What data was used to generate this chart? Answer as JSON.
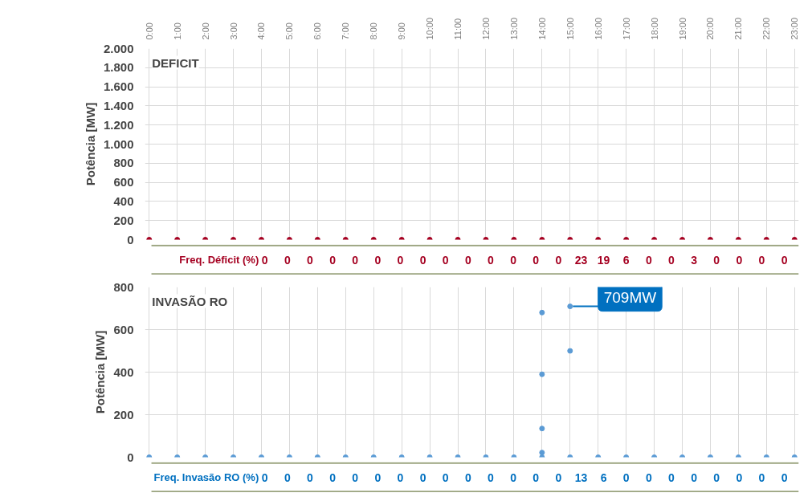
{
  "chart_data": [
    {
      "type": "scatter",
      "title": "DEFICIT",
      "ylabel": "Potência [MW]",
      "categories": [
        "0:00",
        "1:00",
        "2:00",
        "3:00",
        "4:00",
        "5:00",
        "6:00",
        "7:00",
        "8:00",
        "9:00",
        "10:00",
        "11:00",
        "12:00",
        "13:00",
        "14:00",
        "15:00",
        "16:00",
        "17:00",
        "18:00",
        "19:00",
        "20:00",
        "21:00",
        "22:00",
        "23:00"
      ],
      "series": [
        {
          "color": "#a50021",
          "values": [
            0,
            0,
            0,
            0,
            0,
            0,
            0,
            0,
            0,
            0,
            0,
            0,
            0,
            0,
            0,
            0,
            0,
            0,
            0,
            0,
            0,
            0,
            0,
            0
          ]
        }
      ],
      "ylim": [
        0,
        2000
      ],
      "yticks": [
        0,
        200,
        400,
        {
          "value": 600,
          "label": "600"
        },
        800,
        {
          "value": 1000,
          "label": "1.000"
        },
        {
          "value": 1200,
          "label": "1.200"
        },
        {
          "value": 1400,
          "label": "1.400"
        },
        {
          "value": 1600,
          "label": "1.600"
        },
        {
          "value": 1800,
          "label": "1.800"
        },
        {
          "value": 2000,
          "label": "2.000"
        }
      ],
      "grid": true,
      "marker": "circle"
    },
    {
      "type": "other",
      "title": "Freq. Déficit (%)",
      "color": "#a50021",
      "values": [
        0,
        0,
        0,
        0,
        0,
        0,
        0,
        0,
        0,
        0,
        0,
        0,
        0,
        0,
        23,
        19,
        6,
        0,
        0,
        3,
        0,
        0,
        0,
        0
      ],
      "data_labels": true
    },
    {
      "type": "scatter",
      "title": "INVASÃO RO",
      "ylabel": "Potência [MW]",
      "categories": [
        "0:00",
        "1:00",
        "2:00",
        "3:00",
        "4:00",
        "5:00",
        "6:00",
        "7:00",
        "8:00",
        "9:00",
        "10:00",
        "11:00",
        "12:00",
        "13:00",
        "14:00",
        "15:00",
        "16:00",
        "17:00",
        "18:00",
        "19:00",
        "20:00",
        "21:00",
        "22:00",
        "23:00"
      ],
      "series": [
        {
          "color": "#5b9bd5",
          "x": [
            "0:00",
            "1:00",
            "2:00",
            "3:00",
            "4:00",
            "5:00",
            "6:00",
            "7:00",
            "8:00",
            "9:00",
            "10:00",
            "11:00",
            "12:00",
            "13:00",
            "14:00",
            "14:00",
            "14:00",
            "14:00",
            "14:00",
            "15:00",
            "15:00",
            "15:00",
            "16:00",
            "17:00",
            "18:00",
            "19:00",
            "20:00",
            "21:00",
            "22:00",
            "23:00"
          ],
          "values": [
            0,
            0,
            0,
            0,
            0,
            0,
            0,
            0,
            0,
            0,
            0,
            0,
            0,
            0,
            0,
            22,
            135,
            390,
            680,
            0,
            500,
            709,
            0,
            0,
            0,
            0,
            0,
            0,
            0,
            0
          ]
        }
      ],
      "ylim": [
        0,
        800
      ],
      "yticks": [
        0,
        200,
        400,
        600,
        800
      ],
      "grid": true,
      "marker": "circle",
      "tick_labels": "y",
      "annotations": [
        {
          "text": "709MW",
          "x": "15:00",
          "y": 709
        }
      ]
    },
    {
      "type": "other",
      "title": "Freq. Invasão RO (%)",
      "color": "#0070c0",
      "values": [
        0,
        0,
        0,
        0,
        0,
        0,
        0,
        0,
        0,
        0,
        0,
        0,
        0,
        0,
        13,
        6,
        0,
        0,
        0,
        0,
        0,
        0,
        0,
        0
      ],
      "data_labels": true
    }
  ]
}
